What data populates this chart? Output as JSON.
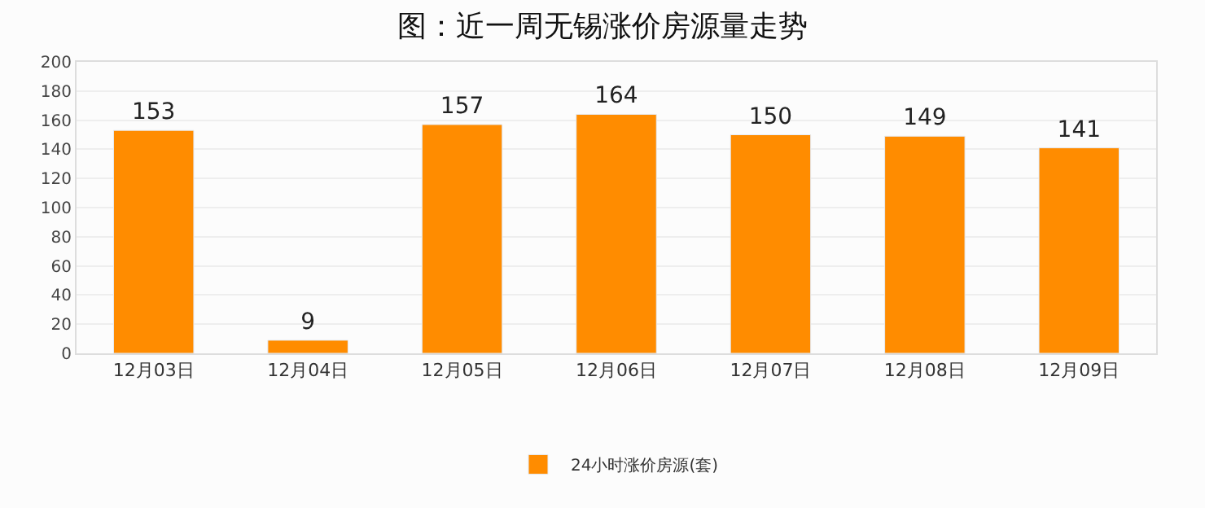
{
  "chart_data": {
    "type": "bar",
    "title": "图：近一周无锡涨价房源量走势",
    "categories": [
      "12月03日",
      "12月04日",
      "12月05日",
      "12月06日",
      "12月07日",
      "12月08日",
      "12月09日"
    ],
    "series": [
      {
        "name": "24小时涨价房源(套)",
        "color": "#ff8c00",
        "values": [
          153,
          9,
          157,
          164,
          150,
          149,
          141
        ]
      }
    ],
    "ylim": [
      0,
      200
    ],
    "yticks": [
      0,
      20,
      40,
      60,
      80,
      100,
      120,
      140,
      160,
      180,
      200
    ],
    "grid": "y",
    "legend": "bottom",
    "data_labels": true
  }
}
